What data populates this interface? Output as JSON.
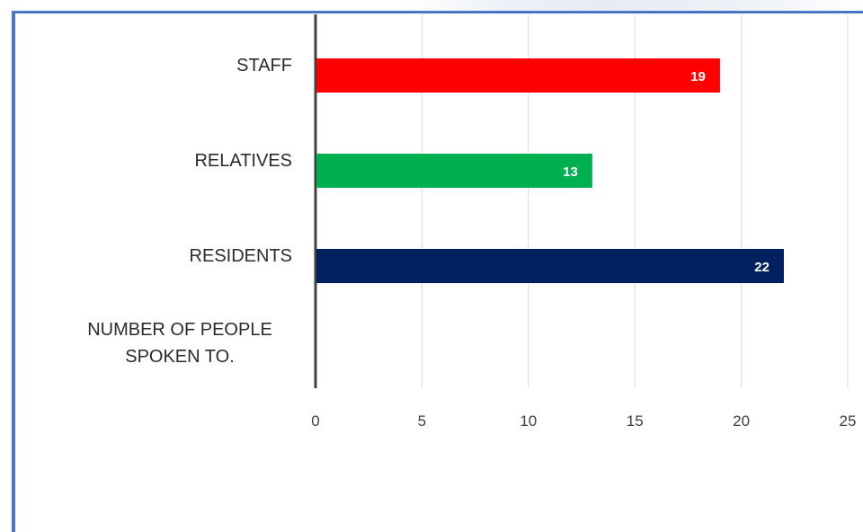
{
  "chart_data": {
    "type": "bar",
    "orientation": "horizontal",
    "categories": [
      "NUMBER OF PEOPLE SPOKEN TO.",
      "RESIDENTS",
      "RELATIVES",
      "STAFF"
    ],
    "category_lines": [
      [
        "NUMBER OF PEOPLE",
        "SPOKEN TO."
      ],
      [
        "RESIDENTS"
      ],
      [
        "RELATIVES"
      ],
      [
        "STAFF"
      ]
    ],
    "values": [
      null,
      22,
      13,
      19
    ],
    "data_labels": [
      "",
      "22",
      "13",
      "19"
    ],
    "colors": [
      "#000000",
      "#002060",
      "#00b050",
      "#ff0000"
    ],
    "xlim": [
      0,
      25
    ],
    "xticks": [
      "0",
      "5",
      "10",
      "15",
      "20",
      "25"
    ],
    "grid": "vertical",
    "legend": "none"
  }
}
